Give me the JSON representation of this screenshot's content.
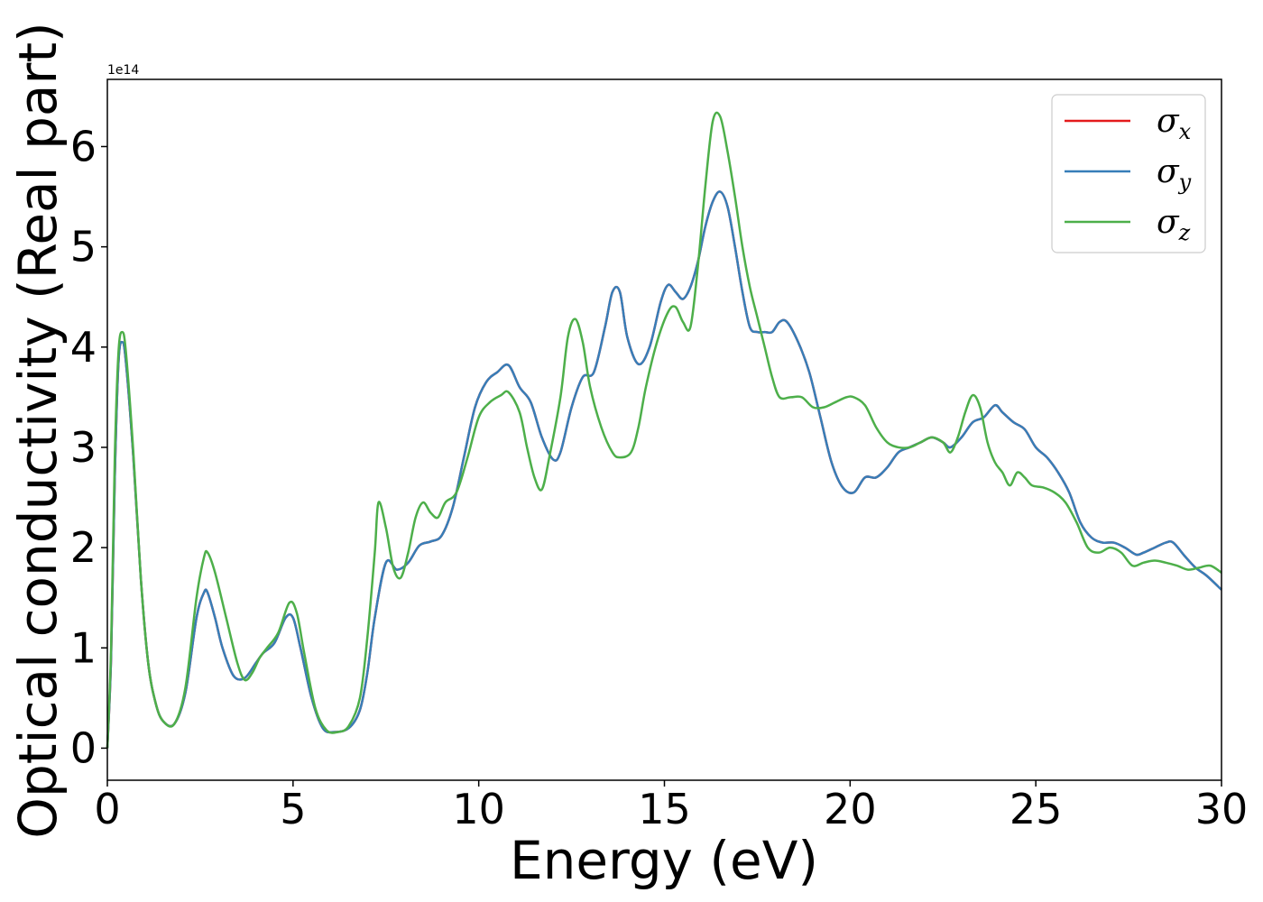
{
  "chart_data": {
    "type": "line",
    "xlabel": "Energy (eV)",
    "ylabel": "Optical conductivity (Real part)",
    "y_offset_label": "1e14",
    "xlim": [
      0,
      30
    ],
    "ylim": [
      -0.32,
      6.67
    ],
    "xticks": [
      0,
      5,
      10,
      15,
      20,
      25,
      30
    ],
    "yticks": [
      0,
      1,
      2,
      3,
      4,
      5,
      6
    ],
    "grid": false,
    "legend_position": "top-right",
    "series": [
      {
        "name": "σx",
        "symbol": "σ",
        "subscript": "x",
        "color": "#e41a1c",
        "x": [
          0,
          0.1,
          0.2,
          0.3,
          0.4,
          0.5,
          0.7,
          0.9,
          1.1,
          1.3,
          1.5,
          1.8,
          2.1,
          2.4,
          2.6,
          2.7,
          2.9,
          3.1,
          3.4,
          3.7,
          4.0,
          4.2,
          4.5,
          4.8,
          5.0,
          5.2,
          5.5,
          5.8,
          6.1,
          6.5,
          6.8,
          7.0,
          7.2,
          7.5,
          7.8,
          8.1,
          8.4,
          8.7,
          9.0,
          9.3,
          9.6,
          9.9,
          10.2,
          10.5,
          10.8,
          11.1,
          11.4,
          11.7,
          12.0,
          12.2,
          12.5,
          12.8,
          13.1,
          13.4,
          13.6,
          13.8,
          14.0,
          14.3,
          14.6,
          14.9,
          15.1,
          15.3,
          15.5,
          15.7,
          15.9,
          16.1,
          16.3,
          16.5,
          16.7,
          16.9,
          17.1,
          17.3,
          17.5,
          17.7,
          17.9,
          18.1,
          18.3,
          18.6,
          18.9,
          19.2,
          19.5,
          19.8,
          20.1,
          20.4,
          20.7,
          21.0,
          21.3,
          21.6,
          21.9,
          22.2,
          22.5,
          22.7,
          23.0,
          23.3,
          23.6,
          23.9,
          24.1,
          24.4,
          24.7,
          25.0,
          25.3,
          25.6,
          25.9,
          26.2,
          26.5,
          26.8,
          27.1,
          27.4,
          27.7,
          27.9,
          28.2,
          28.5,
          28.7,
          29.0,
          29.3,
          29.6,
          30.0
        ],
        "values": [
          0.0,
          0.9,
          2.7,
          3.85,
          4.05,
          3.85,
          2.9,
          1.7,
          0.85,
          0.45,
          0.27,
          0.24,
          0.55,
          1.3,
          1.55,
          1.55,
          1.3,
          1.0,
          0.72,
          0.7,
          0.85,
          0.95,
          1.05,
          1.3,
          1.3,
          1.0,
          0.5,
          0.2,
          0.16,
          0.2,
          0.38,
          0.75,
          1.3,
          1.85,
          1.78,
          1.85,
          2.02,
          2.06,
          2.12,
          2.4,
          2.9,
          3.4,
          3.65,
          3.75,
          3.82,
          3.6,
          3.45,
          3.1,
          2.88,
          2.95,
          3.4,
          3.7,
          3.75,
          4.2,
          4.55,
          4.55,
          4.1,
          3.83,
          4.0,
          4.45,
          4.62,
          4.55,
          4.48,
          4.6,
          4.85,
          5.2,
          5.45,
          5.55,
          5.4,
          5.0,
          4.55,
          4.2,
          4.15,
          4.15,
          4.15,
          4.25,
          4.25,
          4.05,
          3.75,
          3.3,
          2.85,
          2.6,
          2.55,
          2.7,
          2.7,
          2.8,
          2.95,
          3.0,
          3.05,
          3.1,
          3.05,
          3.0,
          3.1,
          3.25,
          3.3,
          3.42,
          3.35,
          3.25,
          3.18,
          3.0,
          2.9,
          2.75,
          2.55,
          2.25,
          2.1,
          2.05,
          2.05,
          2.0,
          1.93,
          1.95,
          2.0,
          2.05,
          2.05,
          1.92,
          1.8,
          1.72,
          1.58
        ]
      },
      {
        "name": "σy",
        "symbol": "σ",
        "subscript": "y",
        "color": "#377eb8",
        "x": [
          0,
          0.1,
          0.2,
          0.3,
          0.4,
          0.5,
          0.7,
          0.9,
          1.1,
          1.3,
          1.5,
          1.8,
          2.1,
          2.4,
          2.6,
          2.7,
          2.9,
          3.1,
          3.4,
          3.7,
          4.0,
          4.2,
          4.5,
          4.8,
          5.0,
          5.2,
          5.5,
          5.8,
          6.1,
          6.5,
          6.8,
          7.0,
          7.2,
          7.5,
          7.8,
          8.1,
          8.4,
          8.7,
          9.0,
          9.3,
          9.6,
          9.9,
          10.2,
          10.5,
          10.8,
          11.1,
          11.4,
          11.7,
          12.0,
          12.2,
          12.5,
          12.8,
          13.1,
          13.4,
          13.6,
          13.8,
          14.0,
          14.3,
          14.6,
          14.9,
          15.1,
          15.3,
          15.5,
          15.7,
          15.9,
          16.1,
          16.3,
          16.5,
          16.7,
          16.9,
          17.1,
          17.3,
          17.5,
          17.7,
          17.9,
          18.1,
          18.3,
          18.6,
          18.9,
          19.2,
          19.5,
          19.8,
          20.1,
          20.4,
          20.7,
          21.0,
          21.3,
          21.6,
          21.9,
          22.2,
          22.5,
          22.7,
          23.0,
          23.3,
          23.6,
          23.9,
          24.1,
          24.4,
          24.7,
          25.0,
          25.3,
          25.6,
          25.9,
          26.2,
          26.5,
          26.8,
          27.1,
          27.4,
          27.7,
          27.9,
          28.2,
          28.5,
          28.7,
          29.0,
          29.3,
          29.6,
          30.0
        ],
        "values": [
          0.0,
          0.9,
          2.7,
          3.85,
          4.05,
          3.85,
          2.9,
          1.7,
          0.85,
          0.45,
          0.27,
          0.24,
          0.55,
          1.3,
          1.55,
          1.55,
          1.3,
          1.0,
          0.72,
          0.7,
          0.85,
          0.95,
          1.05,
          1.3,
          1.3,
          1.0,
          0.5,
          0.2,
          0.16,
          0.2,
          0.38,
          0.75,
          1.3,
          1.85,
          1.78,
          1.85,
          2.02,
          2.06,
          2.12,
          2.4,
          2.9,
          3.4,
          3.65,
          3.75,
          3.82,
          3.6,
          3.45,
          3.1,
          2.88,
          2.95,
          3.4,
          3.7,
          3.75,
          4.2,
          4.55,
          4.55,
          4.1,
          3.83,
          4.0,
          4.45,
          4.62,
          4.55,
          4.48,
          4.6,
          4.85,
          5.2,
          5.45,
          5.55,
          5.4,
          5.0,
          4.55,
          4.2,
          4.15,
          4.15,
          4.15,
          4.25,
          4.25,
          4.05,
          3.75,
          3.3,
          2.85,
          2.6,
          2.55,
          2.7,
          2.7,
          2.8,
          2.95,
          3.0,
          3.05,
          3.1,
          3.05,
          3.0,
          3.1,
          3.25,
          3.3,
          3.42,
          3.35,
          3.25,
          3.18,
          3.0,
          2.9,
          2.75,
          2.55,
          2.25,
          2.1,
          2.05,
          2.05,
          2.0,
          1.93,
          1.95,
          2.0,
          2.05,
          2.05,
          1.92,
          1.8,
          1.72,
          1.58
        ]
      },
      {
        "name": "σz",
        "symbol": "σ",
        "subscript": "z",
        "color": "#4daf4a",
        "x": [
          0,
          0.1,
          0.2,
          0.3,
          0.4,
          0.5,
          0.7,
          0.9,
          1.1,
          1.3,
          1.5,
          1.8,
          2.1,
          2.4,
          2.6,
          2.7,
          2.9,
          3.2,
          3.5,
          3.7,
          3.9,
          4.1,
          4.3,
          4.6,
          4.9,
          5.1,
          5.3,
          5.6,
          5.9,
          6.2,
          6.5,
          6.8,
          7.0,
          7.2,
          7.3,
          7.5,
          7.7,
          7.9,
          8.1,
          8.3,
          8.5,
          8.7,
          8.9,
          9.1,
          9.4,
          9.7,
          10.0,
          10.3,
          10.6,
          10.8,
          11.1,
          11.3,
          11.5,
          11.7,
          11.9,
          12.2,
          12.4,
          12.6,
          12.8,
          13.0,
          13.3,
          13.6,
          13.8,
          14.1,
          14.3,
          14.5,
          14.8,
          15.1,
          15.3,
          15.5,
          15.7,
          15.9,
          16.1,
          16.3,
          16.5,
          16.7,
          16.9,
          17.1,
          17.3,
          17.5,
          17.7,
          17.9,
          18.1,
          18.4,
          18.7,
          19.0,
          19.3,
          19.6,
          19.9,
          20.1,
          20.4,
          20.7,
          21.0,
          21.3,
          21.6,
          21.9,
          22.2,
          22.5,
          22.7,
          22.9,
          23.1,
          23.3,
          23.5,
          23.7,
          23.9,
          24.1,
          24.3,
          24.5,
          24.7,
          24.9,
          25.2,
          25.5,
          25.8,
          26.1,
          26.4,
          26.7,
          27.0,
          27.3,
          27.6,
          27.9,
          28.2,
          28.5,
          28.8,
          29.1,
          29.4,
          29.7,
          30.0
        ],
        "values": [
          0.0,
          1.0,
          2.9,
          3.95,
          4.15,
          3.95,
          2.95,
          1.7,
          0.85,
          0.45,
          0.27,
          0.24,
          0.6,
          1.5,
          1.9,
          1.95,
          1.75,
          1.3,
          0.85,
          0.68,
          0.75,
          0.9,
          1.0,
          1.15,
          1.45,
          1.35,
          0.95,
          0.4,
          0.18,
          0.16,
          0.22,
          0.5,
          1.1,
          1.95,
          2.45,
          2.2,
          1.8,
          1.7,
          1.95,
          2.3,
          2.45,
          2.35,
          2.3,
          2.45,
          2.55,
          2.9,
          3.3,
          3.45,
          3.52,
          3.55,
          3.35,
          3.0,
          2.7,
          2.58,
          2.9,
          3.5,
          4.1,
          4.28,
          4.05,
          3.6,
          3.2,
          2.95,
          2.9,
          2.95,
          3.2,
          3.6,
          4.05,
          4.35,
          4.4,
          4.25,
          4.2,
          4.8,
          5.6,
          6.25,
          6.3,
          5.95,
          5.5,
          5.0,
          4.6,
          4.3,
          4.0,
          3.7,
          3.5,
          3.5,
          3.5,
          3.4,
          3.4,
          3.45,
          3.5,
          3.5,
          3.42,
          3.2,
          3.05,
          3.0,
          3.0,
          3.05,
          3.1,
          3.05,
          2.95,
          3.1,
          3.35,
          3.52,
          3.4,
          3.05,
          2.85,
          2.75,
          2.62,
          2.75,
          2.7,
          2.62,
          2.6,
          2.55,
          2.45,
          2.25,
          2.0,
          1.95,
          2.0,
          1.95,
          1.82,
          1.85,
          1.87,
          1.85,
          1.82,
          1.78,
          1.8,
          1.82,
          1.75
        ]
      }
    ]
  }
}
